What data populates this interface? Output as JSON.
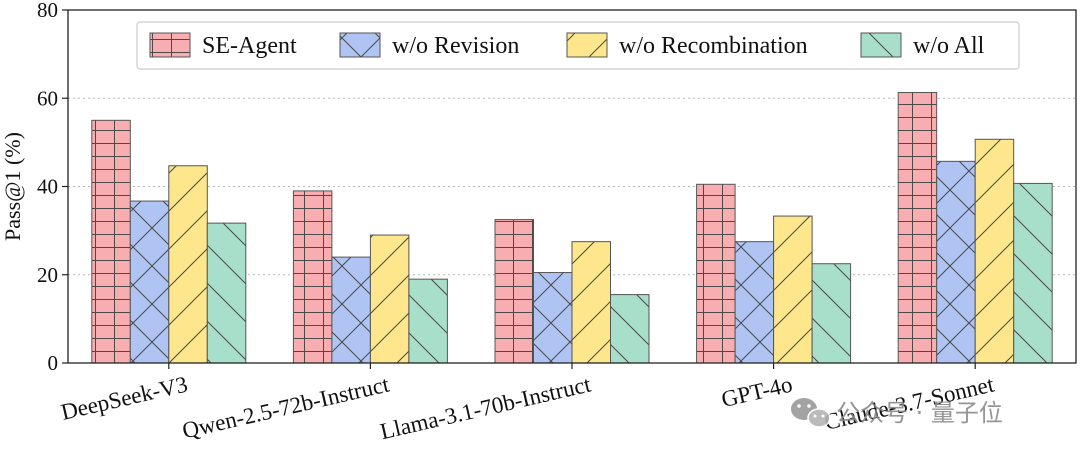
{
  "chart_data": {
    "type": "bar",
    "ylabel": "Pass@1 (%)",
    "ylim": [
      0,
      80
    ],
    "yticks": [
      0,
      20,
      40,
      60,
      80
    ],
    "grid": "horizontal dotted",
    "legend_position": "top",
    "categories": [
      "DeepSeek-V3",
      "Qwen-2.5-72b-Instruct",
      "Llama-3.1-70b-Instruct",
      "GPT-4o",
      "Claude-3.7-Sonnet"
    ],
    "series": [
      {
        "name": "SE-Agent",
        "color": "#f8aeb0",
        "pattern": "grid",
        "values": [
          55,
          39,
          32.5,
          40.5,
          61.3
        ]
      },
      {
        "name": "w/o Revision",
        "color": "#afc4f2",
        "pattern": "cross",
        "values": [
          36.7,
          24,
          20.5,
          27.5,
          45.7
        ]
      },
      {
        "name": "w/o Recombination",
        "color": "#fde68b",
        "pattern": "slash",
        "values": [
          44.7,
          29,
          27.5,
          33.3,
          50.7
        ]
      },
      {
        "name": "w/o All",
        "color": "#a7dfca",
        "pattern": "backslash",
        "values": [
          31.7,
          19,
          15.5,
          22.5,
          40.7
        ]
      }
    ]
  },
  "watermark": {
    "icon": "wechat-icon",
    "text": "公众号 · 量子位"
  }
}
